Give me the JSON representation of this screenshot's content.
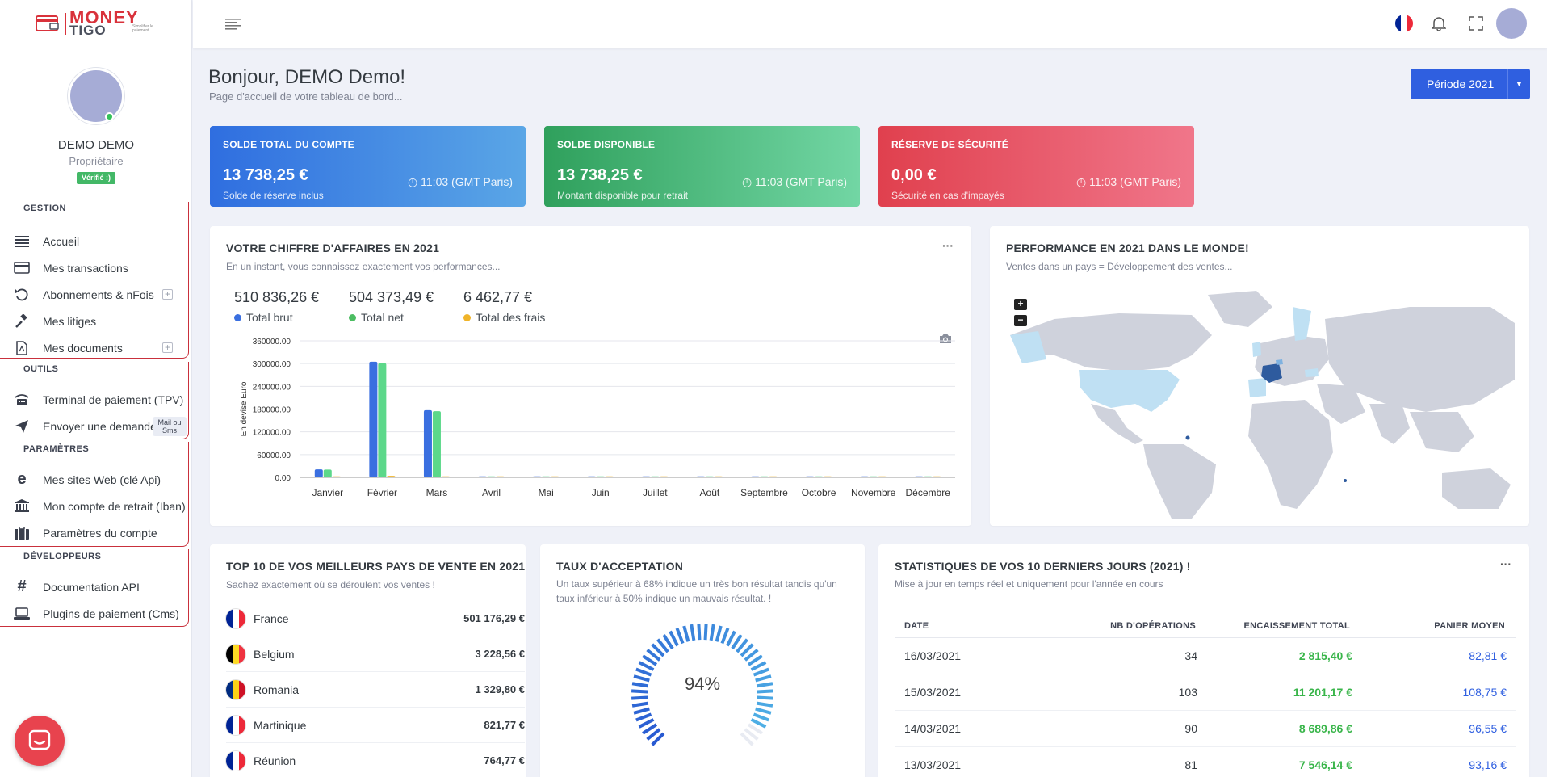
{
  "brand": {
    "line1": "MONEY",
    "line2": "TIGO",
    "tagline": "Simplifier le paiement"
  },
  "profile": {
    "name": "DEMO DEMO",
    "role": "Propriétaire",
    "badge": "Vérifié :)"
  },
  "nav": {
    "gestion": {
      "title": "GESTION",
      "items": [
        {
          "label": "Accueil",
          "icon": "list-icon"
        },
        {
          "label": "Mes transactions",
          "icon": "credit-card-icon"
        },
        {
          "label": "Abonnements & nFois",
          "icon": "refresh-icon"
        },
        {
          "label": "Mes litiges",
          "icon": "gavel-icon"
        },
        {
          "label": "Mes documents",
          "icon": "pdf-file-icon"
        }
      ]
    },
    "outils": {
      "title": "OUTILS",
      "items": [
        {
          "label": "Terminal de paiement (TPV)",
          "icon": "terminal-icon"
        },
        {
          "label": "Envoyer une demande",
          "icon": "send-icon",
          "tag": "Mail ou Sms"
        }
      ]
    },
    "parametres": {
      "title": "PARAMÈTRES",
      "items": [
        {
          "label": "Mes sites Web (clé Api)",
          "icon": "edge-icon"
        },
        {
          "label": "Mon compte de retrait (Iban)",
          "icon": "bank-icon"
        },
        {
          "label": "Paramètres du compte",
          "icon": "briefcase-icon"
        }
      ]
    },
    "developpeurs": {
      "title": "DÉVELOPPEURS",
      "items": [
        {
          "label": "Documentation API",
          "icon": "hashtag-icon"
        },
        {
          "label": "Plugins de paiement (Cms)",
          "icon": "laptop-icon"
        }
      ]
    }
  },
  "header": {
    "greeting": "Bonjour, DEMO Demo!",
    "subtitle": "Page d'accueil de votre tableau de bord...",
    "period": "Période 2021"
  },
  "kpis": [
    {
      "title": "SOLDE TOTAL DU COMPTE",
      "value": "13 738,25 €",
      "sub": "Solde de réserve inclus",
      "time": "11:03 (GMT Paris)",
      "color_start": "#2f6ee0",
      "color_end": "#5aa6e6"
    },
    {
      "title": "SOLDE DISPONIBLE",
      "value": "13 738,25 €",
      "sub": "Montant disponible pour retrait",
      "time": "11:03 (GMT Paris)",
      "color_start": "#2fa05c",
      "color_end": "#72d6a4"
    },
    {
      "title": "RÉSERVE DE SÉCURITÉ",
      "value": "0,00 €",
      "sub": "Sécurité en cas d'impayés",
      "time": "11:03 (GMT Paris)",
      "color_start": "#e0404e",
      "color_end": "#f0768a"
    }
  ],
  "revenue": {
    "title": "VOTRE CHIFFRE D'AFFAIRES EN 2021",
    "subtitle": "En un instant, vous connaissez exactement vos performances...",
    "totals": [
      {
        "value": "510 836,26 €",
        "label": "Total brut",
        "color": "#3a6fe0"
      },
      {
        "value": "504 373,49 €",
        "label": "Total net",
        "color": "#4cbd62"
      },
      {
        "value": "6 462,77 €",
        "label": "Total des frais",
        "color": "#f0b429"
      }
    ]
  },
  "chart_data": {
    "type": "bar",
    "categories": [
      "Janvier",
      "Février",
      "Mars",
      "Avril",
      "Mai",
      "Juin",
      "Juillet",
      "Août",
      "Septembre",
      "Octobre",
      "Novembre",
      "Décembre"
    ],
    "series": [
      {
        "name": "Total brut",
        "color": "#3a6fe0",
        "values": [
          21000,
          305000,
          177000,
          0,
          0,
          0,
          0,
          0,
          0,
          0,
          0,
          0
        ]
      },
      {
        "name": "Total net",
        "color": "#5cd88a",
        "values": [
          20500,
          301000,
          174500,
          0,
          0,
          0,
          0,
          0,
          0,
          0,
          0,
          0
        ]
      },
      {
        "name": "Total des frais",
        "color": "#f0b429",
        "values": [
          500,
          4000,
          2500,
          0,
          0,
          0,
          0,
          0,
          0,
          0,
          0,
          0
        ]
      }
    ],
    "yticks": [
      "360000.00",
      "300000.00",
      "240000.00",
      "180000.00",
      "120000.00",
      "60000.00",
      "0.00"
    ],
    "ylabel": "En devise Euro",
    "ylim": [
      0,
      360000
    ]
  },
  "world": {
    "title": "PERFORMANCE EN 2021 DANS LE MONDE!",
    "subtitle": "Ventes dans un pays = Développement des ventes...",
    "zoom_in": "+",
    "zoom_out": "−"
  },
  "countries": {
    "title": "TOP 10 DE VOS MEILLEURS PAYS DE VENTE EN 2021",
    "subtitle": "Sachez exactement où se déroulent vos ventes !",
    "items": [
      {
        "name": "France",
        "value": "501 176,29 €",
        "flag": [
          "#002395",
          "#ffffff",
          "#ed2939"
        ]
      },
      {
        "name": "Belgium",
        "value": "3 228,56 €",
        "flag": [
          "#000000",
          "#fdda24",
          "#ef3340"
        ]
      },
      {
        "name": "Romania",
        "value": "1 329,80 €",
        "flag": [
          "#002b7f",
          "#fcd116",
          "#ce1126"
        ]
      },
      {
        "name": "Martinique",
        "value": "821,77 €",
        "flag": [
          "#002395",
          "#ffffff",
          "#ed2939"
        ]
      },
      {
        "name": "Réunion",
        "value": "764,77 €",
        "flag": [
          "#002395",
          "#ffffff",
          "#ed2939"
        ]
      }
    ]
  },
  "acceptance": {
    "title": "TAUX D'ACCEPTATION",
    "subtitle": "Un taux supérieur à 68% indique un très bon résultat tandis qu'un taux inférieur à 50% indique un mauvais résultat. !",
    "value": "94%",
    "fraction": 0.94
  },
  "stats": {
    "title": "STATISTIQUES DE VOS 10 DERNIERS JOURS (2021) !",
    "subtitle": "Mise à jour en temps réel et uniquement pour l'année en cours",
    "headers": [
      "DATE",
      "NB D'OPÉRATIONS",
      "ENCAISSEMENT TOTAL",
      "PANIER MOYEN"
    ],
    "rows": [
      [
        "16/03/2021",
        "34",
        "2 815,40 €",
        "82,81 €"
      ],
      [
        "15/03/2021",
        "103",
        "11 201,17 €",
        "108,75 €"
      ],
      [
        "14/03/2021",
        "90",
        "8 689,86 €",
        "96,55 €"
      ],
      [
        "13/03/2021",
        "81",
        "7 546,14 €",
        "93,16 €"
      ]
    ]
  }
}
